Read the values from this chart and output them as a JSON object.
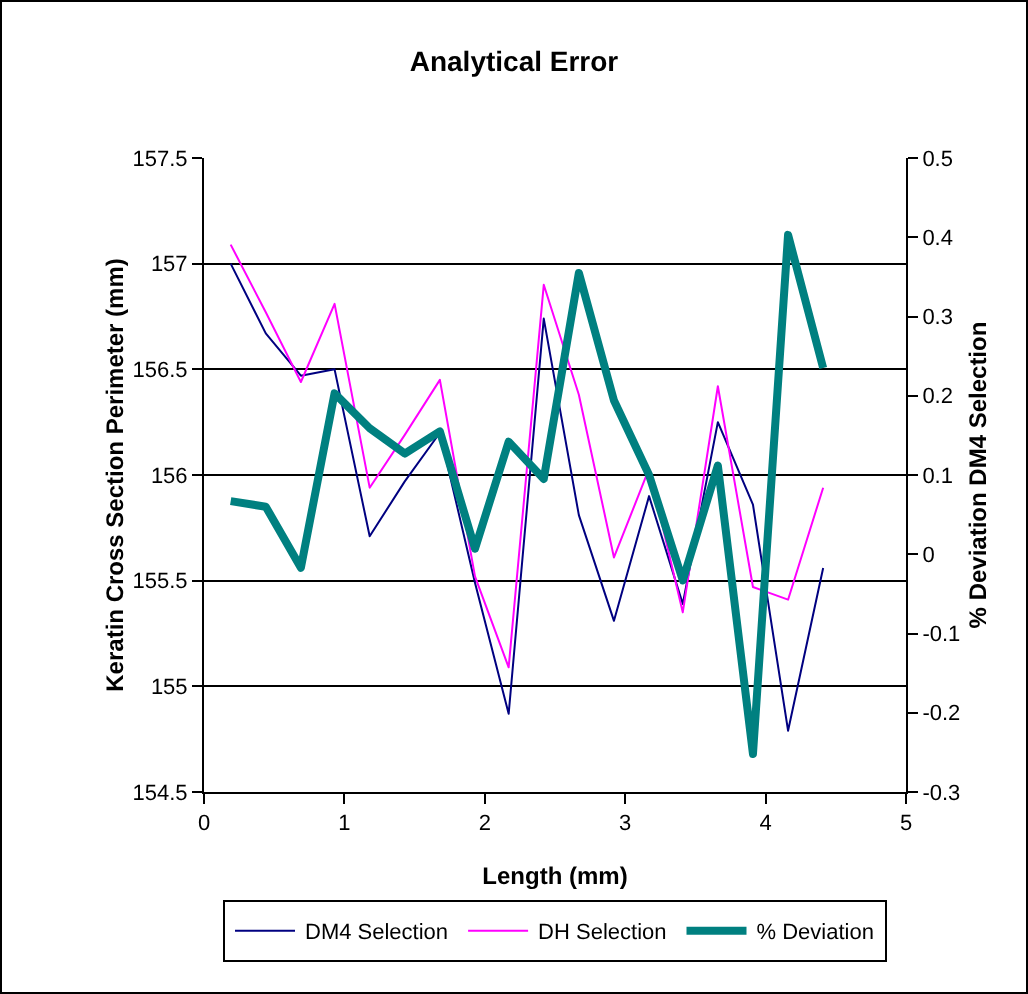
{
  "chart_data": {
    "type": "line",
    "title": "Analytical Error",
    "xlabel": "Length (mm)",
    "ylabel": "Keratin Cross Section Perimeter (mm)",
    "y2label": "% Deviation DM4 Selection",
    "x": [
      0.19,
      0.44,
      0.69,
      0.93,
      1.18,
      1.43,
      1.68,
      1.93,
      2.17,
      2.42,
      2.67,
      2.92,
      3.17,
      3.41,
      3.66,
      3.91,
      4.16,
      4.41
    ],
    "series": [
      {
        "name": "DM4 Selection",
        "color": "#000080",
        "values": [
          157.0,
          156.67,
          156.47,
          156.5,
          155.71,
          155.97,
          156.2,
          155.49,
          154.87,
          156.74,
          155.81,
          155.31,
          155.9,
          155.39,
          156.25,
          155.86,
          154.79,
          155.56
        ]
      },
      {
        "name": "DH Selection",
        "color": "#ff00ff",
        "values": [
          157.09,
          156.77,
          156.44,
          156.81,
          155.94,
          156.19,
          156.45,
          155.52,
          155.09,
          156.9,
          156.38,
          155.61,
          156.03,
          155.35,
          156.42,
          155.47,
          155.41,
          155.94
        ]
      },
      {
        "name": "% Deviation",
        "color": "#008080",
        "axis": "y2",
        "values": [
          0.067,
          0.06,
          -0.017,
          0.203,
          0.159,
          0.127,
          0.155,
          0.007,
          0.142,
          0.095,
          0.355,
          0.194,
          0.1,
          -0.033,
          0.112,
          -0.252,
          0.403,
          0.235
        ]
      }
    ],
    "xlim": [
      0,
      5
    ],
    "xticks": [
      0,
      1,
      2,
      3,
      4,
      5
    ],
    "ylim": [
      154.5,
      157.5
    ],
    "yticks": [
      154.5,
      155,
      155.5,
      156,
      156.5,
      157,
      157.5
    ],
    "y2lim": [
      -0.3,
      0.5
    ],
    "y2ticks": [
      -0.3,
      -0.2,
      -0.1,
      0,
      0.1,
      0.2,
      0.3,
      0.4,
      0.5
    ],
    "grid": "y",
    "legend": "bottom",
    "marker": "none",
    "line_style": "solid"
  }
}
